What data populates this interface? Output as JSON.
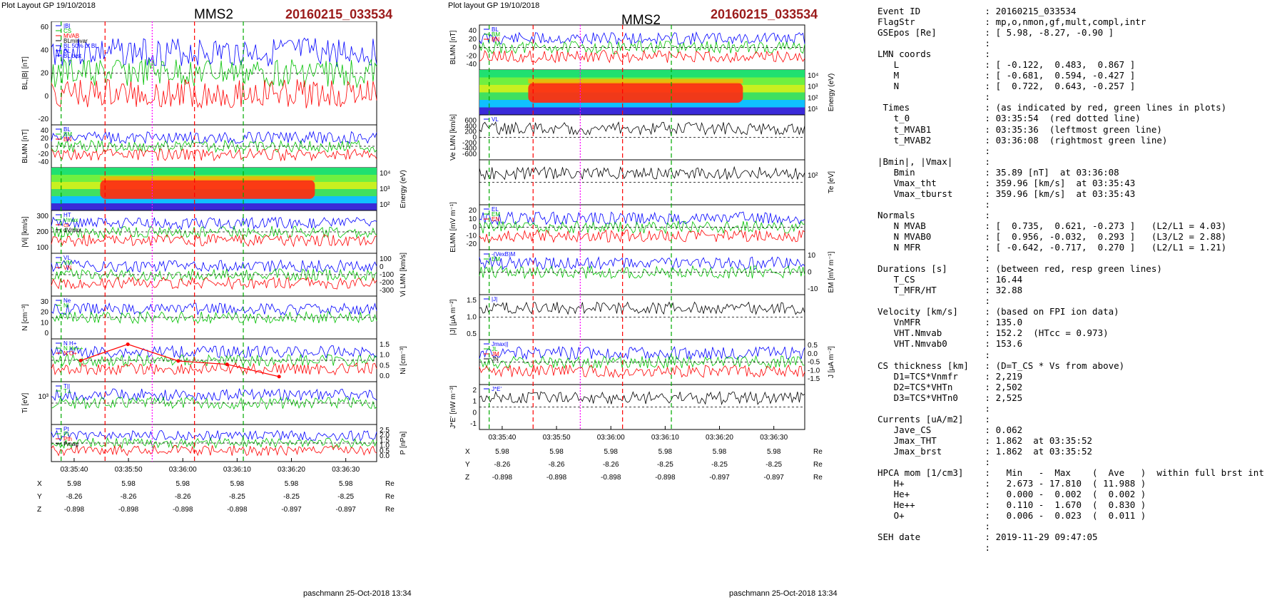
{
  "left_plot": {
    "header_left": "Plot Layout GP 19/10/2018",
    "title": "MMS2",
    "event": "20160215_033534",
    "footer": "paschmann 25-Oct-2018 13:34",
    "xticks": [
      "03:35:40",
      "03:35:50",
      "03:36:00",
      "03:36:10",
      "03:36:20",
      "03:36:30"
    ],
    "coords": {
      "labels": [
        "X",
        "Y",
        "Z"
      ],
      "unit": "Re",
      "rows": [
        [
          "5.98",
          "5.98",
          "5.98",
          "5.98",
          "5.98",
          "5.98"
        ],
        [
          "-8.26",
          "-8.26",
          "-8.26",
          "-8.25",
          "-8.25",
          "-8.25"
        ],
        [
          "-0.898",
          "-0.898",
          "-0.898",
          "-0.898",
          "-0.897",
          "-0.897"
        ]
      ]
    },
    "panels": [
      {
        "ylabel": "BL,|B| [nT]",
        "side": "left",
        "ticks": [
          "60",
          "40",
          "20",
          "0",
          "-20"
        ],
        "legend": [
          "|B|",
          "CS",
          "MVAB",
          "BLminvar",
          "BL 50% of BL",
          "BL",
          "BL brst"
        ]
      },
      {
        "ylabel": "BLMN [nT]",
        "side": "left",
        "ticks": [
          "40",
          "20",
          "0",
          "-20",
          "-40"
        ],
        "legend": [
          "BL",
          "BM",
          "BN"
        ]
      },
      {
        "ylabel": "Energy (eV)",
        "side": "right",
        "ticks": [
          "10⁴",
          "10³",
          "10²"
        ],
        "legend": []
      },
      {
        "ylabel": "|Vi| [km/s]",
        "side": "left",
        "ticks": [
          "300",
          "200",
          "100"
        ],
        "legend": [
          "HT",
          "Vmax",
          "cs",
          "dVmax"
        ]
      },
      {
        "ylabel": "Vi LMN [km/s]",
        "side": "right",
        "ticks": [
          "100",
          "0",
          "-100",
          "-200",
          "-300"
        ],
        "legend": [
          "VL",
          "VM",
          "VN"
        ]
      },
      {
        "ylabel": "N [cm⁻³]",
        "side": "left",
        "ticks": [
          "30",
          "20",
          "10",
          "0"
        ],
        "legend": [
          "Ne",
          "Ni"
        ]
      },
      {
        "ylabel": "Ni [cm⁻³]",
        "side": "right",
        "ticks": [
          "1.5",
          "1.0",
          "0.5",
          "0.0"
        ],
        "legend": [
          "N H+",
          "N He++",
          "N O+"
        ]
      },
      {
        "ylabel": "Ti [eV]",
        "side": "left",
        "ticks": [
          "10³"
        ],
        "legend": [
          "T||",
          "T⊥"
        ]
      },
      {
        "ylabel": "P [nPa]",
        "side": "right",
        "ticks": [
          "2.5",
          "2.0",
          "1.5",
          "1.0",
          "0.5",
          "0.0"
        ],
        "legend": [
          "Pt",
          "Pi",
          "Pth",
          "Pmag"
        ]
      }
    ],
    "hpca_points": {
      "x": [
        "03:35:38",
        "03:35:50",
        "03:36:00",
        "03:36:10",
        "03:36:20"
      ],
      "y": [
        0.82,
        1.55,
        0.8,
        0.65,
        0.1
      ]
    }
  },
  "right_plot": {
    "header_left": "Plot layout GP 19/10/2018",
    "title": "MMS2",
    "event": "20160215_033534",
    "footer": "paschmann 25-Oct-2018 13:34",
    "xticks": [
      "03:35:40",
      "03:35:50",
      "03:36:00",
      "03:36:10",
      "03:36:20",
      "03:36:30"
    ],
    "coords": {
      "labels": [
        "X",
        "Y",
        "Z"
      ],
      "unit": "Re",
      "rows": [
        [
          "5.98",
          "5.98",
          "5.98",
          "5.98",
          "5.98",
          "5.98"
        ],
        [
          "-8.26",
          "-8.26",
          "-8.26",
          "-8.25",
          "-8.25",
          "-8.25"
        ],
        [
          "-0.898",
          "-0.898",
          "-0.898",
          "-0.898",
          "-0.897",
          "-0.897"
        ]
      ]
    },
    "panels": [
      {
        "ylabel": "BLMN [nT]",
        "side": "left",
        "ticks": [
          "40",
          "20",
          "0",
          "-20",
          "-40"
        ],
        "legend": [
          "BL",
          "BM",
          "BN"
        ]
      },
      {
        "ylabel": "Energy (eV)",
        "side": "right",
        "ticks": [
          "10⁴",
          "10³",
          "10²",
          "10¹"
        ],
        "legend": []
      },
      {
        "ylabel": "Ve LMN [km/s]",
        "side": "left",
        "ticks": [
          "600",
          "400",
          "200",
          "0",
          "-200",
          "-400",
          "-600"
        ],
        "legend": [
          "VL"
        ]
      },
      {
        "ylabel": "Te [eV]",
        "side": "right",
        "ticks": [
          "10²"
        ],
        "legend": []
      },
      {
        "ylabel": "ELMN [mV m⁻¹]",
        "side": "left",
        "ticks": [
          "20",
          "10",
          "0",
          "-10",
          "-20"
        ],
        "legend": [
          "EL",
          "EM",
          "EN"
        ]
      },
      {
        "ylabel": "EM [mV m⁻¹]",
        "side": "right",
        "ticks": [
          "10",
          "0",
          "-10"
        ],
        "legend": [
          "-(VexB)M",
          "EM"
        ]
      },
      {
        "ylabel": "|J| [μA m⁻²]",
        "side": "left",
        "ticks": [
          "1.5",
          "1.0",
          "0.5"
        ],
        "legend": [
          "|J|"
        ]
      },
      {
        "ylabel": "J [μA m⁻²]",
        "side": "right",
        "ticks": [
          "0.5",
          "0.0",
          "-0.5",
          "-1.0",
          "-1.5"
        ],
        "legend": [
          "Jmax||",
          "JL",
          "JM",
          "JN"
        ]
      },
      {
        "ylabel": "J*E' [nW m⁻³]",
        "side": "left",
        "ticks": [
          "2",
          "1",
          "0",
          "-1"
        ],
        "legend": [
          "J*E'"
        ]
      }
    ]
  },
  "info": [
    {
      "k": "Event ID",
      "v": "20160215_033534"
    },
    {
      "k": "FlagStr",
      "v": "mp,o,nmon,gf,mult,compl,intr"
    },
    {
      "k": "GSEpos [Re]",
      "v": "[ 5.98, -8.27, -0.90 ]"
    },
    {
      "k": "",
      "v": ""
    },
    {
      "k": "LMN coords",
      "v": ""
    },
    {
      "k": "   L",
      "v": "[ -0.122,  0.483,  0.867 ]"
    },
    {
      "k": "   M",
      "v": "[ -0.681,  0.594, -0.427 ]"
    },
    {
      "k": "   N",
      "v": "[  0.722,  0.643, -0.257 ]"
    },
    {
      "k": "",
      "v": ""
    },
    {
      "k": " Times",
      "v": "(as indicated by red, green lines in plots)"
    },
    {
      "k": "   t_0",
      "v": "03:35:54  (red dotted line)"
    },
    {
      "k": "   t_MVAB1",
      "v": "03:35:36  (leftmost green line)"
    },
    {
      "k": "   t_MVAB2",
      "v": "03:36:08  (rightmost green line)"
    },
    {
      "k": "",
      "v": ""
    },
    {
      "k": "|Bmin|, |Vmax|",
      "v": ""
    },
    {
      "k": "   Bmin",
      "v": "35.89 [nT]  at 03:36:08"
    },
    {
      "k": "   Vmax_tht",
      "v": "359.96 [km/s]  at 03:35:43"
    },
    {
      "k": "   Vmax_tburst",
      "v": "359.96 [km/s]  at 03:35:43"
    },
    {
      "k": "",
      "v": ""
    },
    {
      "k": "Normals",
      "v": ""
    },
    {
      "k": "   N MVAB",
      "v": "[  0.735,  0.621, -0.273 ]   (L2/L1 = 4.03)"
    },
    {
      "k": "   N MVAB0",
      "v": "[  0.956, -0.032,  0.293 ]   (L3/L2 = 2.88)"
    },
    {
      "k": "   N MFR",
      "v": "[ -0.642, -0.717,  0.270 ]   (L2/L1 = 1.21)"
    },
    {
      "k": "",
      "v": ""
    },
    {
      "k": "Durations [s]",
      "v": "(between red, resp green lines)"
    },
    {
      "k": "   T_CS",
      "v": "16.44"
    },
    {
      "k": "   T_MFR/HT",
      "v": "32.88"
    },
    {
      "k": "",
      "v": ""
    },
    {
      "k": "Velocity [km/s]",
      "v": "(based on FPI ion data)"
    },
    {
      "k": "   VnMFR",
      "v": "135.0"
    },
    {
      "k": "   VHT.Nmvab",
      "v": "152.2  (HTcc = 0.973)"
    },
    {
      "k": "   VHT.Nmvab0",
      "v": "153.6"
    },
    {
      "k": "",
      "v": ""
    },
    {
      "k": "CS thickness [km]",
      "v": "(D=T_CS * Vs from above)"
    },
    {
      "k": "   D1=TCS*Vnmfr",
      "v": "2,219"
    },
    {
      "k": "   D2=TCS*VHTn",
      "v": "2,502"
    },
    {
      "k": "   D3=TCS*VHTn0",
      "v": "2,525"
    },
    {
      "k": "",
      "v": ""
    },
    {
      "k": "Currents [uA/m2]",
      "v": ""
    },
    {
      "k": "   Jave_CS",
      "v": "0.062"
    },
    {
      "k": "   Jmax_THT",
      "v": "1.862  at 03:35:52"
    },
    {
      "k": "   Jmax_brst",
      "v": "1.862  at 03:35:52"
    },
    {
      "k": "",
      "v": ""
    },
    {
      "k": "HPCA mom [1/cm3]",
      "v": "  Min   -  Max    (  Ave   )  within full brst int"
    },
    {
      "k": "   H+",
      "v": "  2.673 - 17.810  ( 11.988 )"
    },
    {
      "k": "   He+",
      "v": "  0.000 -  0.002  (  0.002 )"
    },
    {
      "k": "   He++",
      "v": "  0.110 -  1.670  (  0.830 )"
    },
    {
      "k": "   O+",
      "v": "  0.006 -  0.023  (  0.011 )"
    },
    {
      "k": "",
      "v": ""
    },
    {
      "k": "SEH date",
      "v": "2019-11-29 09:47:05"
    },
    {
      "k": "",
      "v": ""
    }
  ],
  "colors": {
    "event": "#9b1b1b",
    "L": "#0000ff",
    "M": "#00c000",
    "N": "#ff0000",
    "marker_red": "#ff0000",
    "marker_green": "#00aa00",
    "marker_magenta": "#ff00ff"
  }
}
